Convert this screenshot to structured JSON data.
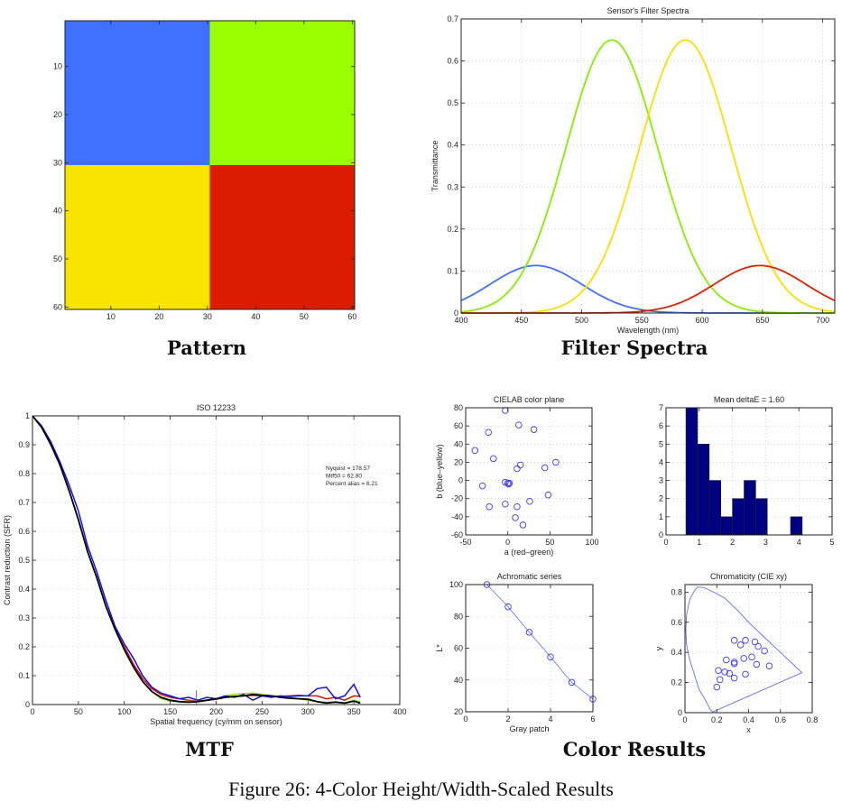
{
  "figure": {
    "caption": "Figure 26: 4-Color Height/Width-Scaled Results",
    "subcaptions": {
      "pattern": "Pattern",
      "filter_spectra": "Filter Spectra",
      "mtf": "MTF",
      "color_results": "Color Results"
    }
  },
  "colors": {
    "blue": "#4070ff",
    "green": "#99ff00",
    "yellow": "#f8e400",
    "red": "#dc1c00",
    "marker": "#3a3aff",
    "hist_bar": "#000080"
  },
  "chart_data": [
    {
      "id": "pattern",
      "type": "heatmap",
      "title": "",
      "xlabel": "",
      "ylabel": "",
      "xlim": [
        0.5,
        60.5
      ],
      "ylim": [
        0.5,
        60.5
      ],
      "xticks": [
        10,
        20,
        30,
        40,
        50,
        60
      ],
      "yticks": [
        10,
        20,
        30,
        40,
        50,
        60
      ],
      "y_reversed": true,
      "blocks": [
        {
          "x": [
            1,
            30
          ],
          "y": [
            1,
            30
          ],
          "color": "#4070ff",
          "label": "blue"
        },
        {
          "x": [
            31,
            60
          ],
          "y": [
            1,
            30
          ],
          "color": "#99ff00",
          "label": "green"
        },
        {
          "x": [
            1,
            30
          ],
          "y": [
            31,
            60
          ],
          "color": "#f8e400",
          "label": "yellow"
        },
        {
          "x": [
            31,
            60
          ],
          "y": [
            31,
            60
          ],
          "color": "#dc1c00",
          "label": "red"
        }
      ]
    },
    {
      "id": "filter_spectra",
      "type": "line",
      "title": "Sensor's Filter Spectra",
      "xlabel": "Wavelength (nm)",
      "ylabel": "Transmittance",
      "xlim": [
        400,
        710
      ],
      "ylim": [
        0,
        0.7
      ],
      "xticks": [
        400,
        450,
        500,
        550,
        600,
        650,
        700
      ],
      "yticks": [
        0,
        0.1,
        0.2,
        0.3,
        0.4,
        0.5,
        0.6,
        0.7
      ],
      "grid": true,
      "series": [
        {
          "name": "blue",
          "color": "#4070ff",
          "peak_wavelength": 462,
          "peak_value": 0.113,
          "sigma": 38
        },
        {
          "name": "green",
          "color": "#88ee00",
          "peak_wavelength": 525,
          "peak_value": 0.65,
          "sigma": 38
        },
        {
          "name": "yellow",
          "color": "#ffdd00",
          "peak_wavelength": 586,
          "peak_value": 0.65,
          "sigma": 38
        },
        {
          "name": "red",
          "color": "#dd2200",
          "peak_wavelength": 648,
          "peak_value": 0.113,
          "sigma": 38
        }
      ]
    },
    {
      "id": "mtf",
      "type": "line",
      "title": "ISO 12233",
      "xlabel": "Spatial frequency (cy/mm on sensor)",
      "ylabel": "Contrast reduction (SFR)",
      "xlim": [
        0,
        400
      ],
      "ylim": [
        0,
        1
      ],
      "xticks": [
        0,
        50,
        100,
        150,
        200,
        250,
        300,
        350,
        400
      ],
      "yticks": [
        0,
        0.1,
        0.2,
        0.3,
        0.4,
        0.5,
        0.6,
        0.7,
        0.8,
        0.9,
        1
      ],
      "grid": true,
      "annotations": [
        "Nyquist = 178.57",
        "Mtf50 = 62.80",
        "Percent alias = 6.21"
      ],
      "nyquist_marker": 178.57,
      "x": [
        0,
        10,
        20,
        30,
        40,
        50,
        60,
        70,
        80,
        90,
        100,
        110,
        120,
        130,
        140,
        150,
        160,
        170,
        180,
        190,
        200,
        210,
        220,
        230,
        240,
        250,
        260,
        270,
        280,
        290,
        300,
        310,
        320,
        330,
        340,
        350,
        357
      ],
      "series": [
        {
          "name": "red",
          "color": "#dd1100",
          "values": [
            1.0,
            0.96,
            0.9,
            0.83,
            0.74,
            0.64,
            0.53,
            0.44,
            0.34,
            0.26,
            0.2,
            0.14,
            0.09,
            0.055,
            0.035,
            0.025,
            0.02,
            0.015,
            0.012,
            0.015,
            0.018,
            0.025,
            0.028,
            0.03,
            0.032,
            0.03,
            0.03,
            0.028,
            0.03,
            0.032,
            0.03,
            0.03,
            0.02,
            0.025,
            0.015,
            0.03,
            0.028
          ]
        },
        {
          "name": "green",
          "color": "#88ee00",
          "values": [
            1.0,
            0.96,
            0.9,
            0.83,
            0.74,
            0.64,
            0.53,
            0.44,
            0.34,
            0.26,
            0.19,
            0.13,
            0.08,
            0.045,
            0.02,
            0.012,
            0.01,
            0.01,
            0.012,
            0.015,
            0.02,
            0.03,
            0.035,
            0.038,
            0.04,
            0.035,
            0.03,
            0.028,
            0.025,
            0.02,
            0.015,
            0.01,
            0.008,
            0.01,
            0.005,
            0.015,
            0.01
          ]
        },
        {
          "name": "blue",
          "color": "#1010ee",
          "values": [
            1.0,
            0.965,
            0.91,
            0.84,
            0.76,
            0.67,
            0.55,
            0.46,
            0.36,
            0.27,
            0.21,
            0.16,
            0.1,
            0.06,
            0.04,
            0.03,
            0.02,
            0.025,
            0.015,
            0.025,
            0.02,
            0.03,
            0.025,
            0.035,
            0.015,
            0.03,
            0.025,
            0.03,
            0.028,
            0.03,
            0.03,
            0.055,
            0.06,
            0.02,
            0.03,
            0.07,
            0.025
          ]
        },
        {
          "name": "black",
          "color": "#000000",
          "values": [
            1.0,
            0.96,
            0.9,
            0.83,
            0.74,
            0.64,
            0.53,
            0.44,
            0.34,
            0.26,
            0.19,
            0.13,
            0.08,
            0.045,
            0.025,
            0.015,
            0.01,
            0.008,
            0.01,
            0.015,
            0.02,
            0.025,
            0.028,
            0.03,
            0.035,
            0.032,
            0.03,
            0.025,
            0.022,
            0.02,
            0.018,
            0.01,
            0.005,
            0.008,
            0.005,
            0.012,
            0.005
          ]
        }
      ]
    },
    {
      "id": "cielab",
      "type": "scatter",
      "title": "CIELAB color plane",
      "xlabel": "a (red–green)",
      "ylabel": "b (blue–yellow)",
      "xlim": [
        -50,
        100
      ],
      "ylim": [
        -60,
        80
      ],
      "xticks": [
        -50,
        0,
        50,
        100
      ],
      "yticks": [
        -60,
        -40,
        -20,
        0,
        20,
        40,
        60,
        80
      ],
      "grid": true,
      "points": [
        [
          -3,
          77
        ],
        [
          13,
          61
        ],
        [
          -23,
          53
        ],
        [
          31,
          56
        ],
        [
          -39,
          33
        ],
        [
          -17,
          24
        ],
        [
          57,
          20
        ],
        [
          15,
          17
        ],
        [
          11,
          13
        ],
        [
          44,
          14
        ],
        [
          -3,
          -2
        ],
        [
          0,
          -3
        ],
        [
          1,
          -4
        ],
        [
          2,
          -3
        ],
        [
          -30,
          -6
        ],
        [
          48,
          -16
        ],
        [
          26,
          -23
        ],
        [
          -3,
          -26
        ],
        [
          11,
          -29
        ],
        [
          -22,
          -29
        ],
        [
          9,
          -41
        ],
        [
          18,
          -49
        ]
      ]
    },
    {
      "id": "delta_e_hist",
      "type": "bar",
      "title": "Mean deltaE = 1.60",
      "xlabel": "",
      "ylabel": "",
      "xlim": [
        0,
        5
      ],
      "ylim": [
        0,
        7
      ],
      "xticks": [
        0,
        1,
        2,
        3,
        4,
        5
      ],
      "yticks": [
        0,
        1,
        2,
        3,
        4,
        5,
        6,
        7
      ],
      "grid": true,
      "bin_edges": [
        0.6,
        0.95,
        1.3,
        1.65,
        2.0,
        2.35,
        2.7,
        3.05,
        3.4,
        3.75,
        4.1
      ],
      "values": [
        7,
        5,
        3,
        1,
        2,
        3,
        2,
        0,
        0,
        1
      ]
    },
    {
      "id": "achromatic",
      "type": "line",
      "title": "Achromatic series",
      "xlabel": "Gray patch",
      "ylabel": "L*",
      "xlim": [
        0,
        6
      ],
      "ylim": [
        20,
        100
      ],
      "xticks": [
        0,
        2,
        4,
        6
      ],
      "yticks": [
        20,
        40,
        60,
        80,
        100
      ],
      "grid": true,
      "x": [
        1,
        2,
        3,
        4,
        5,
        6
      ],
      "values": [
        100,
        86,
        70,
        54.5,
        38.5,
        28
      ]
    },
    {
      "id": "chromaticity",
      "type": "scatter",
      "title": "Chromaticity (CIE xy)",
      "xlabel": "x",
      "ylabel": "y",
      "xlim": [
        0,
        0.8
      ],
      "ylim": [
        0,
        0.85
      ],
      "xticks": [
        0,
        0.2,
        0.4,
        0.6,
        0.8
      ],
      "yticks": [
        0,
        0.2,
        0.4,
        0.6,
        0.8
      ],
      "grid": true,
      "locus": [
        [
          0.175,
          0.005
        ],
        [
          0.17,
          0.01
        ],
        [
          0.16,
          0.02
        ],
        [
          0.14,
          0.06
        ],
        [
          0.12,
          0.1
        ],
        [
          0.09,
          0.15
        ],
        [
          0.06,
          0.25
        ],
        [
          0.03,
          0.35
        ],
        [
          0.01,
          0.45
        ],
        [
          0.005,
          0.55
        ],
        [
          0.01,
          0.65
        ],
        [
          0.03,
          0.75
        ],
        [
          0.06,
          0.81
        ],
        [
          0.08,
          0.834
        ],
        [
          0.12,
          0.83
        ],
        [
          0.18,
          0.8
        ],
        [
          0.25,
          0.76
        ],
        [
          0.33,
          0.68
        ],
        [
          0.4,
          0.6
        ],
        [
          0.5,
          0.5
        ],
        [
          0.6,
          0.4
        ],
        [
          0.68,
          0.32
        ],
        [
          0.735,
          0.265
        ]
      ],
      "points": [
        [
          0.31,
          0.48
        ],
        [
          0.38,
          0.48
        ],
        [
          0.44,
          0.47
        ],
        [
          0.35,
          0.45
        ],
        [
          0.46,
          0.44
        ],
        [
          0.5,
          0.41
        ],
        [
          0.42,
          0.37
        ],
        [
          0.37,
          0.36
        ],
        [
          0.26,
          0.35
        ],
        [
          0.31,
          0.335
        ],
        [
          0.31,
          0.325
        ],
        [
          0.45,
          0.32
        ],
        [
          0.53,
          0.31
        ],
        [
          0.21,
          0.28
        ],
        [
          0.25,
          0.27
        ],
        [
          0.28,
          0.26
        ],
        [
          0.38,
          0.255
        ],
        [
          0.31,
          0.23
        ],
        [
          0.22,
          0.22
        ],
        [
          0.2,
          0.17
        ]
      ]
    }
  ]
}
